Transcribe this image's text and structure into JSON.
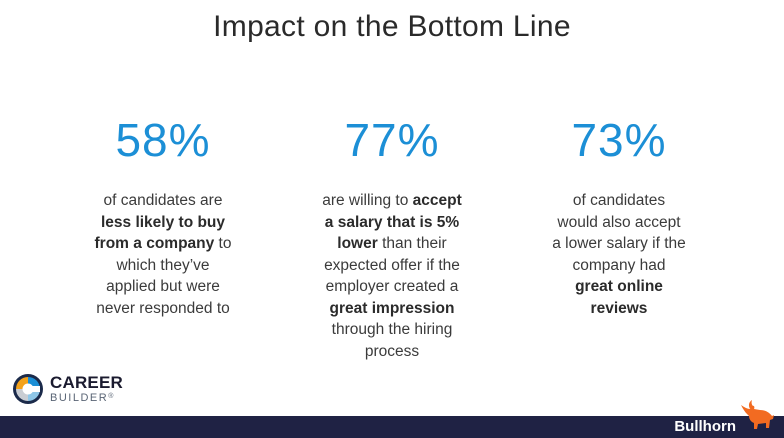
{
  "title": "Impact on the Bottom Line",
  "stats": [
    {
      "percent": "58%",
      "lines": [
        [
          {
            "t": "of candidates are",
            "b": false
          }
        ],
        [
          {
            "t": "less likely to buy",
            "b": true
          }
        ],
        [
          {
            "t": "from a company",
            "b": true
          },
          {
            "t": " to",
            "b": false
          }
        ],
        [
          {
            "t": "which they’ve",
            "b": false
          }
        ],
        [
          {
            "t": "applied but were",
            "b": false
          }
        ],
        [
          {
            "t": "never responded to",
            "b": false
          }
        ]
      ]
    },
    {
      "percent": "77%",
      "lines": [
        [
          {
            "t": "are willing to ",
            "b": false
          },
          {
            "t": "accept",
            "b": true
          }
        ],
        [
          {
            "t": "a salary that is 5%",
            "b": true
          }
        ],
        [
          {
            "t": "lower",
            "b": true
          },
          {
            "t": " than their",
            "b": false
          }
        ],
        [
          {
            "t": "expected offer if the",
            "b": false
          }
        ],
        [
          {
            "t": "employer created a",
            "b": false
          }
        ],
        [
          {
            "t": "great impression",
            "b": true
          }
        ],
        [
          {
            "t": "through the hiring",
            "b": false
          }
        ],
        [
          {
            "t": "process",
            "b": false
          }
        ]
      ]
    },
    {
      "percent": "73%",
      "lines": [
        [
          {
            "t": "of candidates",
            "b": false
          }
        ],
        [
          {
            "t": "would also accept",
            "b": false
          }
        ],
        [
          {
            "t": "a lower salary if the",
            "b": false
          }
        ],
        [
          {
            "t": "company had",
            "b": false
          }
        ],
        [
          {
            "t": "great online",
            "b": true
          }
        ],
        [
          {
            "t": "reviews",
            "b": true
          }
        ]
      ]
    }
  ],
  "logos": {
    "careerbuilder_top": "CAREER",
    "careerbuilder_bottom": "BUILDER",
    "careerbuilder_reg": "®",
    "bullhorn": "Bullhorn",
    "bullhorn_icon": "bull-icon"
  },
  "colors": {
    "accent": "#1c8fd6",
    "footer": "#1f2244",
    "bullhorn_orange": "#f26b21"
  }
}
